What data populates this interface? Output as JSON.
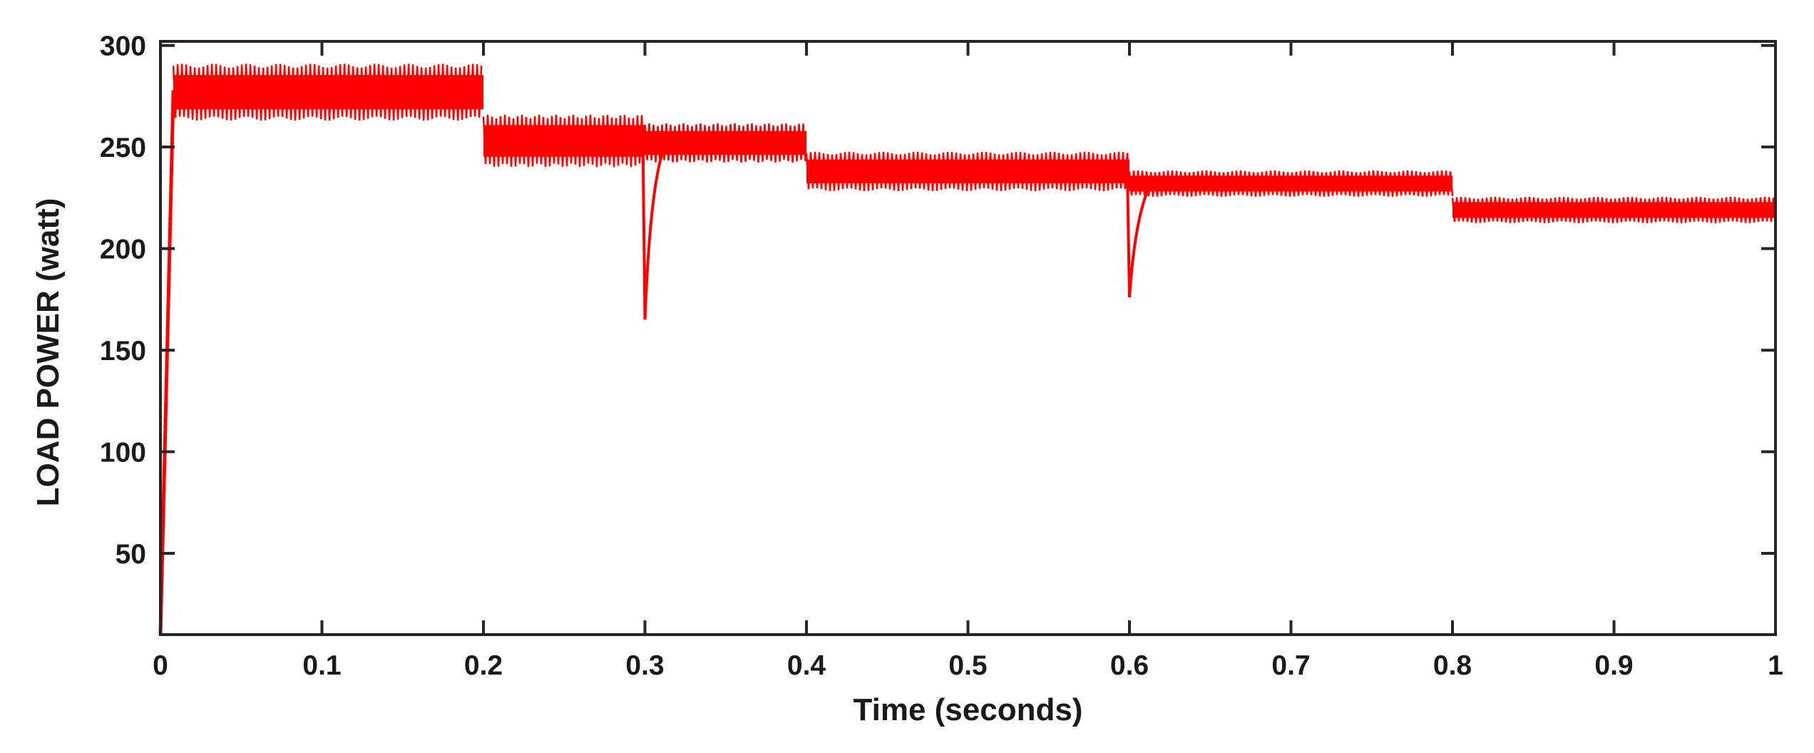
{
  "chart_data": {
    "type": "line",
    "title": "",
    "xlabel": "Time (seconds)",
    "ylabel": "LOAD POWER (watt)",
    "xlim": [
      0,
      1
    ],
    "ylim": [
      10,
      302
    ],
    "x_ticks": [
      0,
      0.1,
      0.2,
      0.3,
      0.4,
      0.5,
      0.6,
      0.7,
      0.8,
      0.9,
      1
    ],
    "x_tick_labels": [
      "0",
      "0.1",
      "0.2",
      "0.3",
      "0.4",
      "0.5",
      "0.6",
      "0.7",
      "0.8",
      "0.9",
      "1"
    ],
    "y_ticks": [
      50,
      100,
      150,
      200,
      250,
      300
    ],
    "y_tick_labels": [
      "50",
      "100",
      "150",
      "200",
      "250",
      "300"
    ],
    "grid": false,
    "legend": "none",
    "series": [
      {
        "color": "#ff0000",
        "segments": [
          {
            "x_start": 0.0,
            "x_end": 0.008,
            "y_from": 10,
            "y_to": 278
          },
          {
            "x_start": 0.008,
            "x_end": 0.2,
            "y_center": 277,
            "ripple_amplitude": 13
          },
          {
            "x_start": 0.2,
            "x_end": 0.3,
            "y_center": 253,
            "ripple_amplitude": 12
          },
          {
            "x_start": 0.3,
            "x_end": 0.4,
            "y_center": 252,
            "ripple_amplitude": 9
          },
          {
            "x_start": 0.4,
            "x_end": 0.6,
            "y_center": 238,
            "ripple_amplitude": 9
          },
          {
            "x_start": 0.6,
            "x_end": 0.8,
            "y_center": 232,
            "ripple_amplitude": 6
          },
          {
            "x_start": 0.8,
            "x_end": 1.0,
            "y_center": 219,
            "ripple_amplitude": 6
          }
        ],
        "dips": [
          {
            "x": 0.3,
            "y_min": 165
          },
          {
            "x": 0.6,
            "y_min": 176
          }
        ]
      }
    ]
  }
}
